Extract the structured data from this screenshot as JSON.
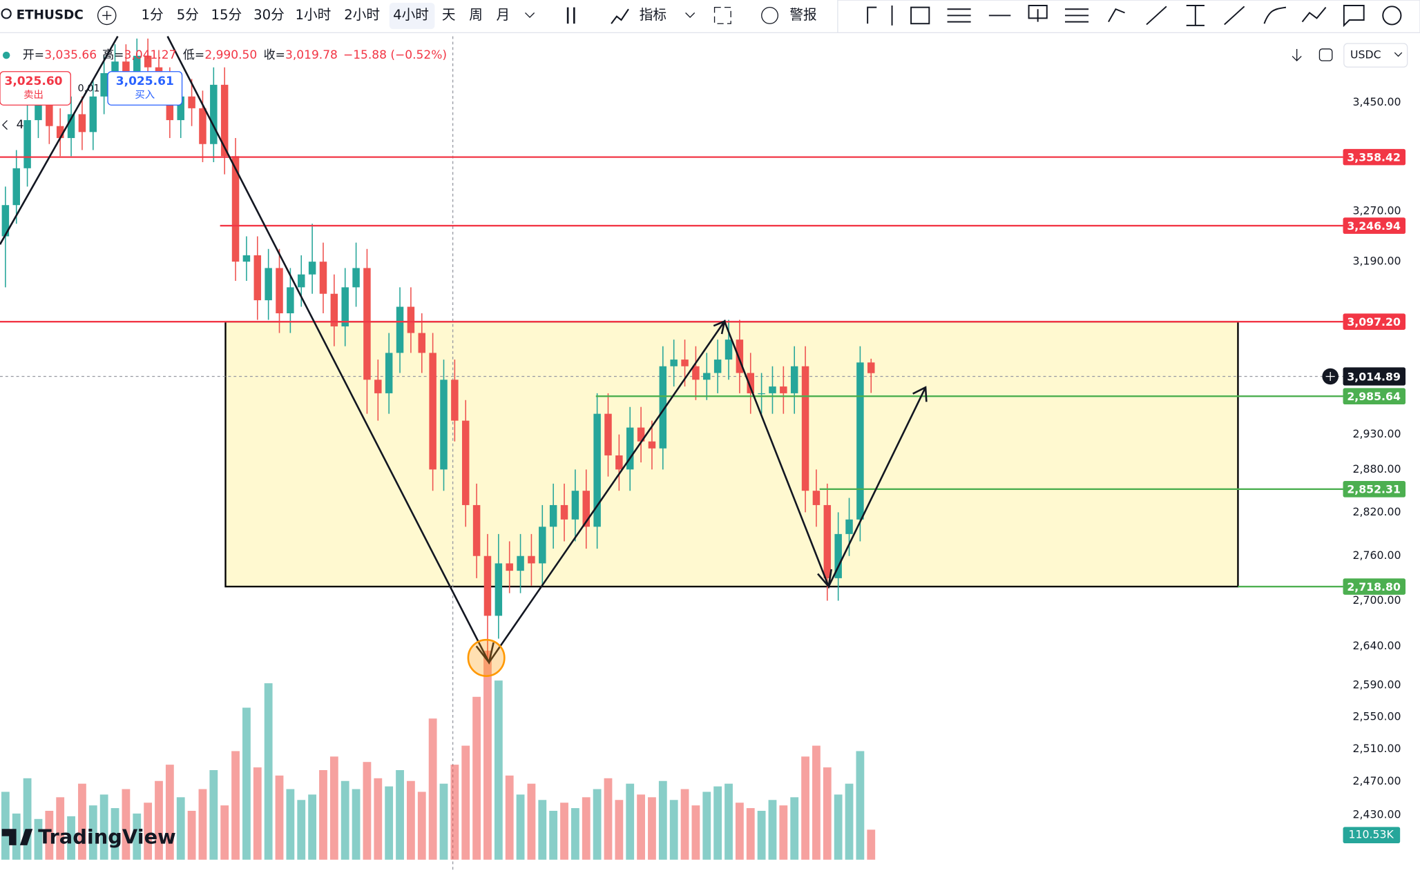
{
  "toolbar": {
    "symbol": "ETHUSDC",
    "intervals": [
      "1分",
      "5分",
      "15分",
      "30分",
      "1小时",
      "2小时",
      "4小时",
      "天",
      "周",
      "月"
    ],
    "active_interval": 6,
    "indicators": "指标",
    "alerts": "警报"
  },
  "legend": {
    "open_label": "开=",
    "open": "3,035.66",
    "high_label": "高=",
    "high": "3,041.27",
    "low_label": "低=",
    "low": "2,990.50",
    "close_label": "收=",
    "close": "3,019.78",
    "change": "−15.88 (−0.52%)"
  },
  "trade": {
    "sell_price": "3,025.60",
    "sell": "卖出",
    "spread": "0.01",
    "buy_price": "3,025.61",
    "buy": "买入",
    "lots": "4"
  },
  "scale_currency": "USDC",
  "watermark": "TradingView",
  "chart_data": {
    "type": "candlestick",
    "log_scale": true,
    "ylim": [
      2377,
      3564
    ],
    "yticks": [
      {
        "value": 3450,
        "label": "3,450.00"
      },
      {
        "value": 3270,
        "label": "3,270.00"
      },
      {
        "value": 3190,
        "label": "3,190.00"
      },
      {
        "value": 2930,
        "label": "2,930.00"
      },
      {
        "value": 2880,
        "label": "2,880.00"
      },
      {
        "value": 2820,
        "label": "2,820.00"
      },
      {
        "value": 2760,
        "label": "2,760.00"
      },
      {
        "value": 2700,
        "label": "2,700.00"
      },
      {
        "value": 2640,
        "label": "2,640.00"
      },
      {
        "value": 2590,
        "label": "2,590.00"
      },
      {
        "value": 2550,
        "label": "2,550.00"
      },
      {
        "value": 2510,
        "label": "2,510.00"
      },
      {
        "value": 2470,
        "label": "2,470.00"
      },
      {
        "value": 2430,
        "label": "2,430.00"
      }
    ],
    "up_color": "#26a69a",
    "down_color": "#ef5350",
    "open": [
      3230,
      3280,
      3340,
      3420,
      3450,
      3410,
      3390,
      3430,
      3400,
      3460,
      3500,
      3520,
      3490,
      3530,
      3510,
      3480,
      3420,
      3460,
      3440,
      3380,
      3480,
      3360,
      3190,
      3200,
      3130,
      3180,
      3110,
      3150,
      3170,
      3190,
      3140,
      3090,
      3150,
      3180,
      3010,
      2990,
      3050,
      3120,
      3080,
      3050,
      2880,
      3010,
      2950,
      2830,
      2760,
      2680,
      2750,
      2740,
      2760,
      2750,
      2800,
      2830,
      2810,
      2850,
      2800,
      2960,
      2900,
      2880,
      2940,
      2920,
      2910,
      3030,
      3040,
      3030,
      3010,
      3020,
      3040,
      3070,
      3020,
      2990,
      2990,
      3000,
      2990,
      3030,
      2850,
      2830,
      2730,
      2790,
      2810,
      3035.66
    ],
    "high": [
      3310,
      3370,
      3450,
      3480,
      3480,
      3440,
      3460,
      3460,
      3490,
      3530,
      3550,
      3550,
      3560,
      3560,
      3540,
      3510,
      3490,
      3490,
      3470,
      3510,
      3510,
      3390,
      3230,
      3230,
      3210,
      3210,
      3180,
      3200,
      3250,
      3220,
      3170,
      3180,
      3220,
      3210,
      3040,
      3080,
      3150,
      3150,
      3110,
      3080,
      3040,
      3040,
      2980,
      2860,
      2790,
      2790,
      2780,
      2790,
      2790,
      2830,
      2860,
      2860,
      2880,
      2880,
      2990,
      2990,
      2930,
      2970,
      2970,
      2950,
      3060,
      3070,
      3070,
      3060,
      3050,
      3070,
      3100,
      3100,
      3050,
      3020,
      3030,
      3030,
      3060,
      3060,
      2880,
      2860,
      2820,
      2840,
      3060,
      3041.27
    ],
    "low": [
      3150,
      3250,
      3310,
      3390,
      3380,
      3360,
      3360,
      3370,
      3370,
      3430,
      3470,
      3460,
      3460,
      3480,
      3450,
      3390,
      3390,
      3410,
      3350,
      3350,
      3330,
      3160,
      3160,
      3100,
      3100,
      3080,
      3080,
      3120,
      3140,
      3110,
      3060,
      3060,
      3120,
      2960,
      2950,
      2960,
      3020,
      3050,
      3020,
      2850,
      2850,
      2920,
      2800,
      2730,
      2620,
      2650,
      2710,
      2710,
      2720,
      2720,
      2770,
      2780,
      2780,
      2770,
      2770,
      2870,
      2850,
      2850,
      2890,
      2880,
      2880,
      3000,
      3000,
      2980,
      2980,
      2990,
      3010,
      2990,
      2960,
      2960,
      2960,
      2960,
      2960,
      2820,
      2800,
      2700,
      2700,
      2760,
      2780,
      2990.5
    ],
    "close": [
      3280,
      3340,
      3420,
      3450,
      3410,
      3390,
      3430,
      3400,
      3460,
      3500,
      3520,
      3490,
      3530,
      3510,
      3480,
      3420,
      3460,
      3440,
      3380,
      3480,
      3360,
      3190,
      3200,
      3130,
      3180,
      3110,
      3150,
      3170,
      3190,
      3140,
      3090,
      3150,
      3180,
      3010,
      2990,
      3050,
      3120,
      3080,
      3050,
      2880,
      3010,
      2950,
      2830,
      2760,
      2680,
      2750,
      2740,
      2760,
      2750,
      2800,
      2830,
      2810,
      2850,
      2800,
      2960,
      2900,
      2880,
      2940,
      2920,
      2910,
      3030,
      3040,
      3030,
      3010,
      3020,
      3040,
      3070,
      3020,
      2990,
      2990,
      3000,
      2990,
      3030,
      2850,
      2830,
      2730,
      2790,
      2810,
      3035.66,
      3019.78
    ],
    "volume": [
      250,
      170,
      300,
      150,
      180,
      230,
      160,
      280,
      200,
      240,
      190,
      260,
      170,
      210,
      290,
      350,
      230,
      180,
      260,
      330,
      200,
      400,
      560,
      340,
      650,
      310,
      260,
      220,
      240,
      330,
      380,
      290,
      260,
      360,
      300,
      270,
      330,
      290,
      250,
      520,
      280,
      350,
      420,
      600,
      770,
      660,
      310,
      240,
      280,
      220,
      180,
      210,
      190,
      230,
      260,
      300,
      220,
      280,
      240,
      230,
      290,
      220,
      260,
      200,
      250,
      270,
      280,
      210,
      190,
      180,
      220,
      200,
      230,
      380,
      420,
      340,
      240,
      280,
      400,
      110.53
    ],
    "last_volume": {
      "value": 110.53,
      "label": "110.53K"
    },
    "levels": [
      {
        "value": 3358.42,
        "label": "3,358.42",
        "color": "#f23645"
      },
      {
        "value": 3246.94,
        "label": "3,246.94",
        "color": "#f23645"
      },
      {
        "value": 3097.2,
        "label": "3,097.20",
        "color": "#f23645"
      },
      {
        "value": 2985.64,
        "label": "2,985.64",
        "color": "#4caf50"
      },
      {
        "value": 2852.31,
        "label": "2,852.31",
        "color": "#4caf50"
      },
      {
        "value": 2718.8,
        "label": "2,718.80",
        "color": "#4caf50"
      }
    ],
    "current_price": {
      "value": 3014.89,
      "label": "3,014.89"
    },
    "range_box": {
      "top": 3097.2,
      "bottom": 2718.8,
      "color": "#fff9d0"
    }
  }
}
